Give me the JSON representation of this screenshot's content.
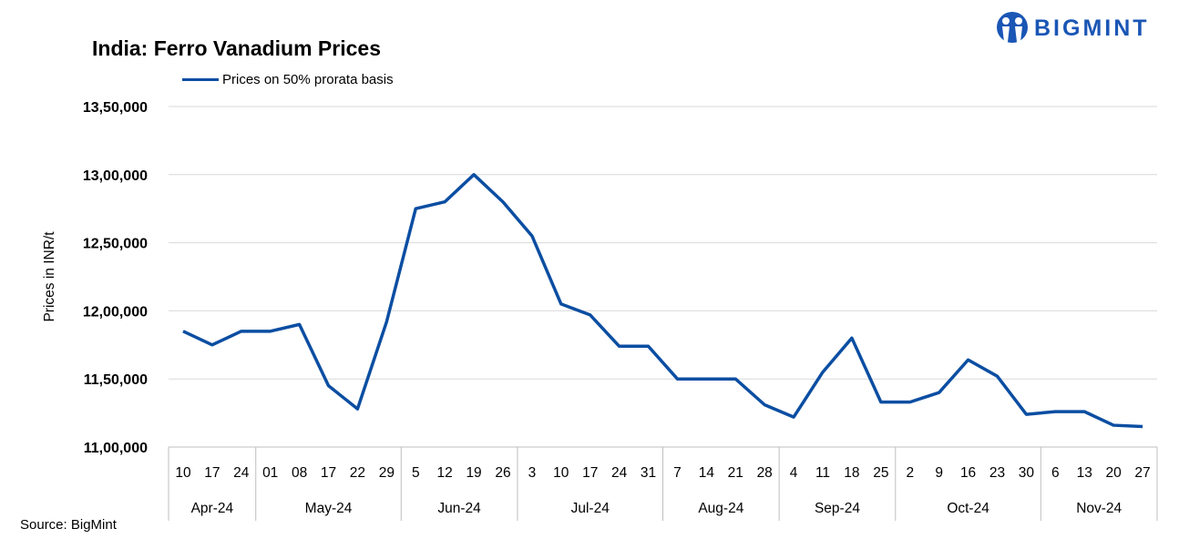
{
  "logo": {
    "text": "BIGMINT"
  },
  "source": "Source: BigMint",
  "chart_data": {
    "type": "line",
    "title": "India: Ferro Vanadium Prices",
    "ylabel": "Prices in INR/t",
    "xlabel": "",
    "ylim": [
      1100000,
      1350000
    ],
    "yticks": [
      1100000,
      1150000,
      1200000,
      1250000,
      1300000,
      1350000
    ],
    "ytick_labels": [
      "11,00,000",
      "11,50,000",
      "12,00,000",
      "12,50,000",
      "13,00,000",
      "13,50,000"
    ],
    "grid": true,
    "legend": "top-left",
    "color": "#0B4EA2",
    "groups": [
      {
        "label": "Apr-24",
        "days": [
          "10",
          "17",
          "24"
        ]
      },
      {
        "label": "May-24",
        "days": [
          "01",
          "08",
          "17",
          "22",
          "29"
        ]
      },
      {
        "label": "Jun-24",
        "days": [
          "5",
          "12",
          "19",
          "26"
        ]
      },
      {
        "label": "Jul-24",
        "days": [
          "3",
          "10",
          "17",
          "24",
          "31"
        ]
      },
      {
        "label": "Aug-24",
        "days": [
          "7",
          "14",
          "21",
          "28"
        ]
      },
      {
        "label": "Sep-24",
        "days": [
          "4",
          "11",
          "18",
          "25"
        ]
      },
      {
        "label": "Oct-24",
        "days": [
          "2",
          "9",
          "16",
          "23",
          "30"
        ]
      },
      {
        "label": "Nov-24",
        "days": [
          "6",
          "13",
          "20",
          "27"
        ]
      }
    ],
    "series": [
      {
        "name": "Prices on 50% prorata basis",
        "values": [
          1185000,
          1175000,
          1185000,
          1185000,
          1190000,
          1145000,
          1128000,
          1192000,
          1275000,
          1280000,
          1300000,
          1280000,
          1255000,
          1205000,
          1197000,
          1174000,
          1174000,
          1150000,
          1150000,
          1150000,
          1131000,
          1122000,
          1155000,
          1180000,
          1133000,
          1133000,
          1140000,
          1164000,
          1152000,
          1124000,
          1126000,
          1126000,
          1116000,
          1115000
        ]
      }
    ]
  }
}
